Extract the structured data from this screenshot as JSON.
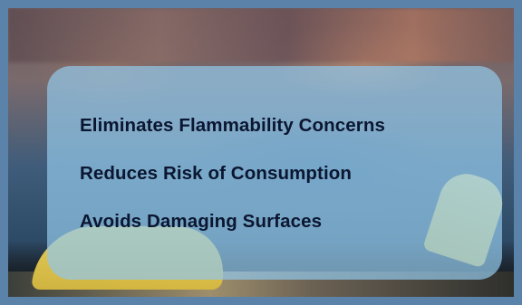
{
  "slide": {
    "benefits": [
      "Eliminates Flammability Concerns",
      "Reduces Risk of Consumption",
      "Avoids Damaging Surfaces"
    ]
  },
  "colors": {
    "frame_border": "#5b82a8",
    "panel": "#91c6e8",
    "text": "#0b1630",
    "chair": "#f1d85e"
  }
}
